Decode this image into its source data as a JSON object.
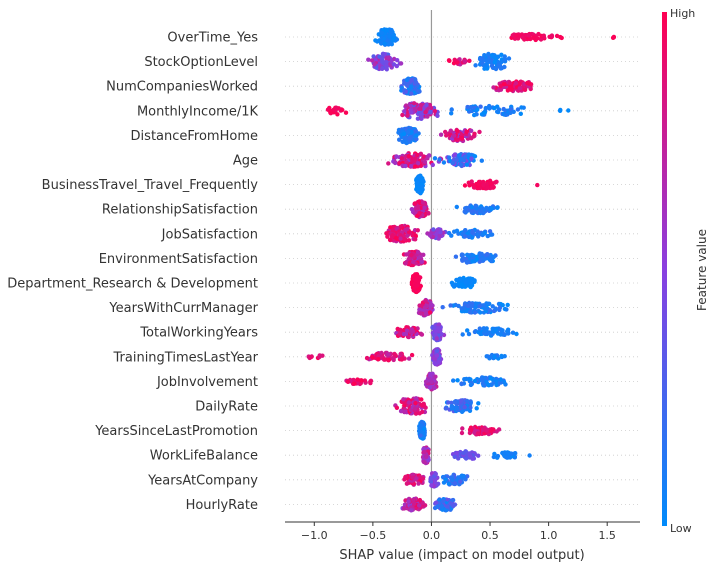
{
  "chart_data": {
    "type": "scatter",
    "subtype": "beeswarm",
    "title": "",
    "xlabel": "SHAP value (impact on model output)",
    "xlim": [
      -1.25,
      1.78
    ],
    "xticks": [
      -1.0,
      -0.5,
      0.0,
      0.5,
      1.0,
      1.5
    ],
    "xtick_labels": [
      "−1.0",
      "−0.5",
      "0.0",
      "0.5",
      "1.0",
      "1.5"
    ],
    "zero_line": 0.0,
    "grid": "dashed horizontal guides",
    "colorbar": {
      "title": "Feature value",
      "high_label": "High",
      "low_label": "Low",
      "high_color": "#ff0052",
      "mid_color": "#8a3fe0",
      "low_color": "#008bfb",
      "placement": "right"
    },
    "features": [
      {
        "name": "OverTime_Yes",
        "clusters": [
          {
            "center": -0.38,
            "spread": 0.16,
            "count": 110,
            "width": 8,
            "value_low": 0.0,
            "value_high": 0.1
          },
          {
            "center": 0.85,
            "spread": 0.4,
            "count": 60,
            "width": 3,
            "value_low": 0.9,
            "value_high": 1.0
          },
          {
            "center": 1.55,
            "spread": 0.1,
            "count": 3,
            "width": 1,
            "value_low": 0.95,
            "value_high": 1.0
          }
        ]
      },
      {
        "name": "StockOptionLevel",
        "clusters": [
          {
            "center": -0.4,
            "spread": 0.2,
            "count": 80,
            "width": 8,
            "value_low": 0.25,
            "value_high": 0.75
          },
          {
            "center": 0.25,
            "spread": 0.15,
            "count": 20,
            "width": 3,
            "value_low": 0.7,
            "value_high": 1.0
          },
          {
            "center": 0.52,
            "spread": 0.25,
            "count": 80,
            "width": 8,
            "value_low": 0.0,
            "value_high": 0.15
          }
        ]
      },
      {
        "name": "NumCompaniesWorked",
        "clusters": [
          {
            "center": -0.18,
            "spread": 0.14,
            "count": 100,
            "width": 8,
            "value_low": 0.0,
            "value_high": 0.35
          },
          {
            "center": 0.7,
            "spread": 0.35,
            "count": 70,
            "width": 5,
            "value_low": 0.75,
            "value_high": 1.0
          }
        ]
      },
      {
        "name": "MonthlyIncome/1K",
        "clusters": [
          {
            "center": -0.8,
            "spread": 0.18,
            "count": 18,
            "width": 4,
            "value_low": 0.9,
            "value_high": 1.0
          },
          {
            "center": -0.1,
            "spread": 0.25,
            "count": 110,
            "width": 8,
            "value_low": 0.3,
            "value_high": 0.9
          },
          {
            "center": 0.5,
            "spread": 0.5,
            "count": 60,
            "width": 5,
            "value_low": 0.0,
            "value_high": 0.2
          },
          {
            "center": 1.12,
            "spread": 0.1,
            "count": 3,
            "width": 1,
            "value_low": 0.0,
            "value_high": 0.05
          }
        ]
      },
      {
        "name": "DistanceFromHome",
        "clusters": [
          {
            "center": -0.2,
            "spread": 0.15,
            "count": 90,
            "width": 8,
            "value_low": 0.0,
            "value_high": 0.2
          },
          {
            "center": 0.25,
            "spread": 0.25,
            "count": 80,
            "width": 6,
            "value_low": 0.5,
            "value_high": 1.0
          }
        ]
      },
      {
        "name": "Age",
        "clusters": [
          {
            "center": -0.15,
            "spread": 0.32,
            "count": 100,
            "width": 7,
            "value_low": 0.5,
            "value_high": 1.0
          },
          {
            "center": 0.25,
            "spread": 0.3,
            "count": 70,
            "width": 6,
            "value_low": 0.0,
            "value_high": 0.5
          }
        ]
      },
      {
        "name": "BusinessTravel_Travel_Frequently",
        "clusters": [
          {
            "center": -0.1,
            "spread": 0.05,
            "count": 120,
            "width": 9,
            "value_low": 0.0,
            "value_high": 0.05
          },
          {
            "center": 0.45,
            "spread": 0.25,
            "count": 60,
            "width": 4,
            "value_low": 0.9,
            "value_high": 1.0
          },
          {
            "center": 0.9,
            "spread": 0.02,
            "count": 1,
            "width": 1,
            "value_low": 0.95,
            "value_high": 1.0
          }
        ]
      },
      {
        "name": "RelationshipSatisfaction",
        "clusters": [
          {
            "center": -0.1,
            "spread": 0.1,
            "count": 90,
            "width": 8,
            "value_low": 0.6,
            "value_high": 1.0
          },
          {
            "center": 0.4,
            "spread": 0.28,
            "count": 60,
            "width": 4,
            "value_low": 0.0,
            "value_high": 0.2
          }
        ]
      },
      {
        "name": "JobSatisfaction",
        "clusters": [
          {
            "center": -0.25,
            "spread": 0.25,
            "count": 100,
            "width": 8,
            "value_low": 0.7,
            "value_high": 1.0
          },
          {
            "center": 0.05,
            "spread": 0.12,
            "count": 40,
            "width": 5,
            "value_low": 0.3,
            "value_high": 0.7
          },
          {
            "center": 0.35,
            "spread": 0.3,
            "count": 50,
            "width": 4,
            "value_low": 0.0,
            "value_high": 0.2
          }
        ]
      },
      {
        "name": "EnvironmentSatisfaction",
        "clusters": [
          {
            "center": -0.15,
            "spread": 0.15,
            "count": 90,
            "width": 7,
            "value_low": 0.6,
            "value_high": 1.0
          },
          {
            "center": 0.4,
            "spread": 0.3,
            "count": 70,
            "width": 5,
            "value_low": 0.0,
            "value_high": 0.2
          }
        ]
      },
      {
        "name": "Department_Research & Development",
        "clusters": [
          {
            "center": -0.13,
            "spread": 0.06,
            "count": 120,
            "width": 9,
            "value_low": 0.95,
            "value_high": 1.0
          },
          {
            "center": 0.28,
            "spread": 0.18,
            "count": 60,
            "width": 5,
            "value_low": 0.0,
            "value_high": 0.05
          }
        ]
      },
      {
        "name": "YearsWithCurrManager",
        "clusters": [
          {
            "center": -0.05,
            "spread": 0.1,
            "count": 90,
            "width": 8,
            "value_low": 0.5,
            "value_high": 1.0
          },
          {
            "center": 0.4,
            "spread": 0.38,
            "count": 80,
            "width": 5,
            "value_low": 0.0,
            "value_high": 0.2
          }
        ]
      },
      {
        "name": "TotalWorkingYears",
        "clusters": [
          {
            "center": -0.2,
            "spread": 0.18,
            "count": 60,
            "width": 5,
            "value_low": 0.6,
            "value_high": 1.0
          },
          {
            "center": 0.05,
            "spread": 0.08,
            "count": 70,
            "width": 8,
            "value_low": 0.3,
            "value_high": 0.6
          },
          {
            "center": 0.5,
            "spread": 0.4,
            "count": 50,
            "width": 4,
            "value_low": 0.0,
            "value_high": 0.15
          }
        ]
      },
      {
        "name": "TrainingTimesLastYear",
        "clusters": [
          {
            "center": -1.0,
            "spread": 0.15,
            "count": 8,
            "width": 2,
            "value_low": 0.8,
            "value_high": 1.0
          },
          {
            "center": -0.38,
            "spread": 0.3,
            "count": 60,
            "width": 4,
            "value_low": 0.7,
            "value_high": 1.0
          },
          {
            "center": 0.05,
            "spread": 0.06,
            "count": 90,
            "width": 8,
            "value_low": 0.3,
            "value_high": 0.6
          },
          {
            "center": 0.55,
            "spread": 0.2,
            "count": 20,
            "width": 2,
            "value_low": 0.0,
            "value_high": 0.15
          }
        ]
      },
      {
        "name": "JobInvolvement",
        "clusters": [
          {
            "center": -0.62,
            "spread": 0.2,
            "count": 25,
            "width": 3,
            "value_low": 0.8,
            "value_high": 1.0
          },
          {
            "center": 0.0,
            "spread": 0.08,
            "count": 100,
            "width": 8,
            "value_low": 0.5,
            "value_high": 0.8
          },
          {
            "center": 0.45,
            "spread": 0.4,
            "count": 60,
            "width": 4,
            "value_low": 0.0,
            "value_high": 0.2
          }
        ]
      },
      {
        "name": "DailyRate",
        "clusters": [
          {
            "center": -0.15,
            "spread": 0.25,
            "count": 90,
            "width": 8,
            "value_low": 0.6,
            "value_high": 1.0
          },
          {
            "center": 0.25,
            "spread": 0.25,
            "count": 70,
            "width": 6,
            "value_low": 0.0,
            "value_high": 0.35
          }
        ]
      },
      {
        "name": "YearsSinceLastPromotion",
        "clusters": [
          {
            "center": -0.08,
            "spread": 0.04,
            "count": 110,
            "width": 9,
            "value_low": 0.0,
            "value_high": 0.2
          },
          {
            "center": 0.42,
            "spread": 0.25,
            "count": 60,
            "width": 4,
            "value_low": 0.75,
            "value_high": 1.0
          }
        ]
      },
      {
        "name": "WorkLifeBalance",
        "clusters": [
          {
            "center": -0.05,
            "spread": 0.05,
            "count": 90,
            "width": 8,
            "value_low": 0.5,
            "value_high": 0.9
          },
          {
            "center": 0.3,
            "spread": 0.2,
            "count": 40,
            "width": 4,
            "value_low": 0.25,
            "value_high": 0.45
          },
          {
            "center": 0.65,
            "spread": 0.25,
            "count": 30,
            "width": 3,
            "value_low": 0.0,
            "value_high": 0.1
          }
        ]
      },
      {
        "name": "YearsAtCompany",
        "clusters": [
          {
            "center": -0.15,
            "spread": 0.15,
            "count": 60,
            "width": 5,
            "value_low": 0.7,
            "value_high": 1.0
          },
          {
            "center": 0.02,
            "spread": 0.06,
            "count": 70,
            "width": 7,
            "value_low": 0.3,
            "value_high": 0.6
          },
          {
            "center": 0.2,
            "spread": 0.2,
            "count": 50,
            "width": 5,
            "value_low": 0.0,
            "value_high": 0.3
          }
        ]
      },
      {
        "name": "HourlyRate",
        "clusters": [
          {
            "center": -0.15,
            "spread": 0.18,
            "count": 70,
            "width": 6,
            "value_low": 0.5,
            "value_high": 1.0
          },
          {
            "center": 0.12,
            "spread": 0.15,
            "count": 70,
            "width": 6,
            "value_low": 0.0,
            "value_high": 0.5
          }
        ]
      }
    ]
  }
}
